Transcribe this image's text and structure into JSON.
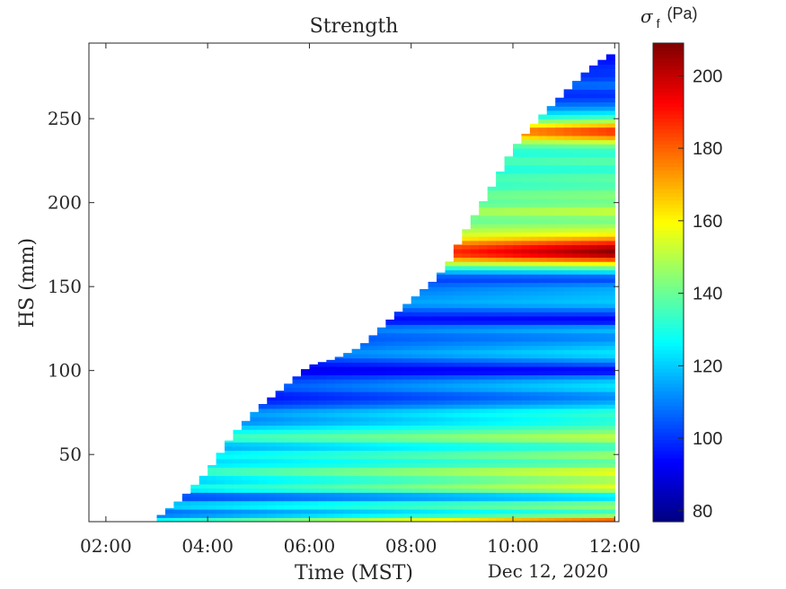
{
  "chart_data": {
    "type": "heatmap",
    "title": "Strength",
    "xlabel": "Time (MST)",
    "x_date_label": "Dec 12, 2020",
    "ylabel": "HS (mm)",
    "colorbar_label": "σ",
    "colorbar_label_sub": "f",
    "colorbar_label_unit": "(Pa)",
    "colormap": "jet",
    "x_ticks": [
      "02:00",
      "04:00",
      "06:00",
      "08:00",
      "10:00",
      "12:00"
    ],
    "y_ticks": [
      50,
      100,
      150,
      200,
      250
    ],
    "colorbar_ticks": [
      80,
      100,
      120,
      140,
      160,
      180,
      200
    ],
    "xlim": [
      "01:40",
      "12:05"
    ],
    "ylim": [
      10,
      295
    ],
    "clim": [
      77,
      209
    ],
    "grid": false,
    "colorbar_position": "right",
    "snow_surface": {
      "time": [
        "03:00",
        "03:30",
        "04:00",
        "04:30",
        "05:00",
        "05:30",
        "06:00",
        "06:30",
        "07:00",
        "07:30",
        "08:00",
        "08:30",
        "08:45",
        "09:00",
        "09:30",
        "10:00",
        "10:30",
        "11:00",
        "11:30",
        "12:00"
      ],
      "height_mm": [
        12,
        24,
        40,
        62,
        78,
        90,
        103,
        107,
        114,
        128,
        142,
        155,
        165,
        180,
        205,
        232,
        250,
        265,
        280,
        290
      ]
    },
    "profile": {
      "height_mm": [
        10,
        15,
        20,
        25,
        30,
        35,
        40,
        45,
        50,
        55,
        60,
        65,
        70,
        75,
        80,
        85,
        90,
        95,
        100,
        105,
        110,
        115,
        120,
        125,
        130,
        135,
        140,
        145,
        150,
        155,
        160,
        165,
        168,
        172,
        176,
        180,
        185,
        190,
        195,
        200,
        205,
        210,
        215,
        220,
        225,
        230,
        235,
        240,
        243,
        246,
        250,
        255,
        260,
        265,
        270,
        275,
        280,
        285,
        290
      ],
      "early_strength_pa": [
        135,
        102,
        125,
        95,
        130,
        115,
        135,
        118,
        125,
        110,
        135,
        120,
        105,
        110,
        95,
        90,
        100,
        95,
        90,
        92,
        105,
        100,
        100,
        105,
        95,
        100,
        110,
        105,
        100,
        100,
        110,
        140,
        150,
        150,
        145,
        140,
        140,
        135,
        140,
        130,
        135,
        125,
        130,
        125,
        130,
        125,
        125,
        130,
        135,
        120,
        110,
        105,
        100,
        95,
        100,
        95,
        95,
        92,
        92
      ],
      "late_strength_pa": [
        195,
        130,
        150,
        115,
        160,
        145,
        160,
        135,
        150,
        130,
        155,
        140,
        130,
        135,
        118,
        110,
        125,
        118,
        90,
        110,
        125,
        118,
        110,
        120,
        90,
        105,
        120,
        118,
        115,
        100,
        130,
        170,
        200,
        209,
        190,
        165,
        150,
        140,
        155,
        140,
        145,
        135,
        140,
        130,
        140,
        130,
        145,
        180,
        190,
        170,
        140,
        118,
        105,
        98,
        110,
        100,
        100,
        95,
        95
      ]
    }
  }
}
